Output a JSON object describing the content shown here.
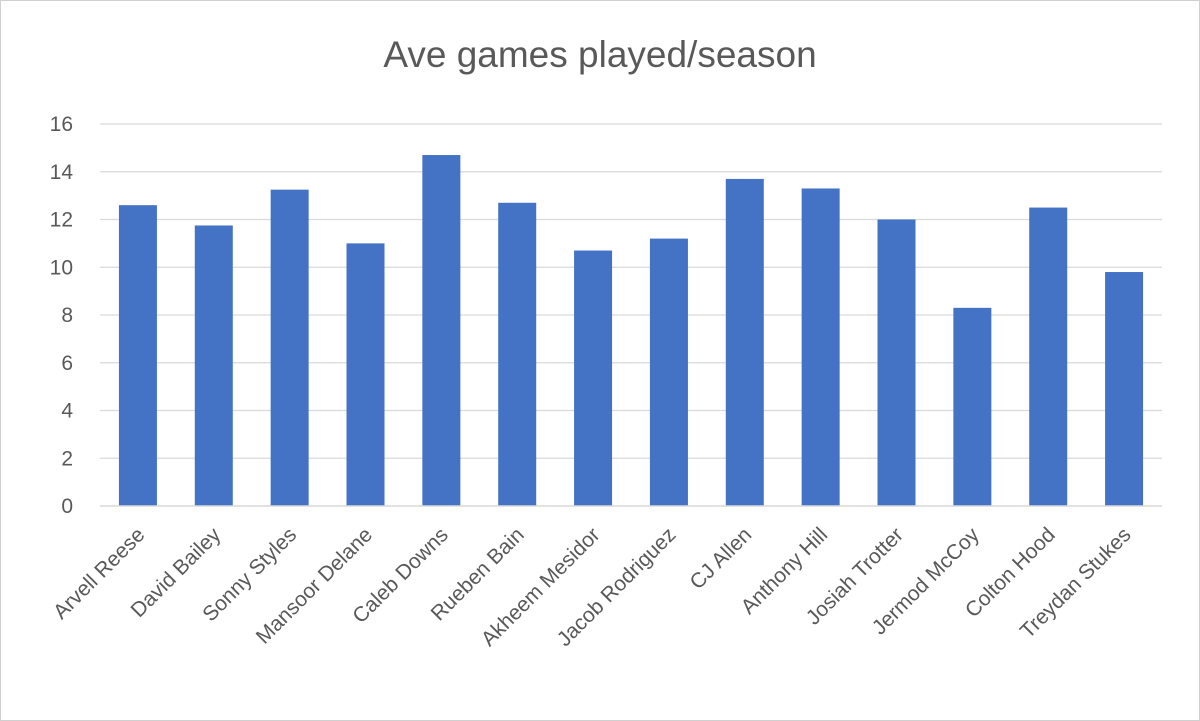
{
  "chart_data": {
    "type": "bar",
    "title": "Ave games played/season",
    "xlabel": "",
    "ylabel": "",
    "categories": [
      "Arvell Reese",
      "David Bailey",
      "Sonny Styles",
      "Mansoor Delane",
      "Caleb Downs",
      "Rueben Bain",
      "Akheem Mesidor",
      "Jacob Rodriguez",
      "CJ Allen",
      "Anthony Hill",
      "Josiah Trotter",
      "Jermod McCoy",
      "Colton Hood",
      "Treydan Stukes"
    ],
    "values": [
      12.6,
      11.75,
      13.25,
      11.0,
      14.7,
      12.7,
      10.7,
      11.2,
      13.7,
      13.3,
      12.0,
      8.3,
      12.5,
      9.8
    ],
    "ylim": [
      0,
      16
    ],
    "yticks": [
      0,
      2,
      4,
      6,
      8,
      10,
      12,
      14,
      16
    ],
    "grid": true,
    "legend": "none",
    "bar_color": "#4472C4",
    "grid_color": "#d9d9d9",
    "text_color": "#595959"
  }
}
